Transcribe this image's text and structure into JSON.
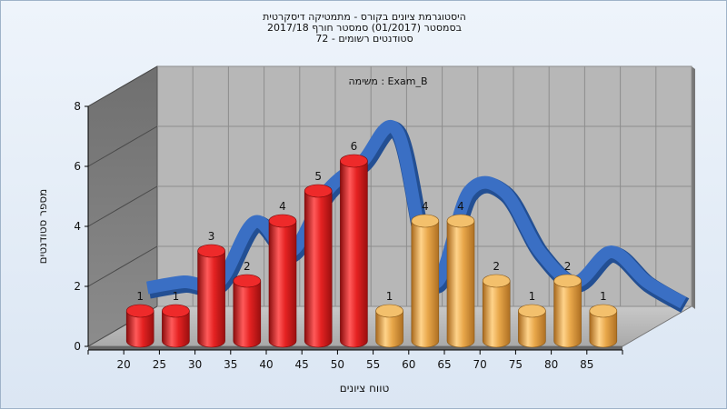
{
  "chart_data": {
    "type": "bar",
    "title_lines": [
      "היסטוגרמת ציונים בקורס - מתמטיקה דיסקרטית",
      "בסמסטר  (01/2017)  סמסטר חורף 2017/18",
      "סטודנטים רשומים - 72"
    ],
    "subtitle": "משימה : Exam_B",
    "xlabel": "טווח ציונים",
    "ylabel": "מספר סטודנטים",
    "x_ticks": [
      "20",
      "25",
      "30",
      "35",
      "40",
      "45",
      "50",
      "55",
      "60",
      "65",
      "70",
      "75",
      "80",
      "85"
    ],
    "y_ticks": [
      "0",
      "2",
      "4",
      "6",
      "8"
    ],
    "ylim": [
      0,
      8
    ],
    "categories": [
      "20",
      "25",
      "30",
      "35",
      "40",
      "45",
      "50",
      "55",
      "60",
      "65",
      "70",
      "75",
      "80",
      "85"
    ],
    "values": [
      1,
      1,
      3,
      2,
      4,
      5,
      6,
      1,
      4,
      4,
      2,
      1,
      2,
      1
    ],
    "bar_colors": [
      "#d81e1e",
      "#d81e1e",
      "#d81e1e",
      "#d81e1e",
      "#d81e1e",
      "#d81e1e",
      "#d81e1e",
      "#e6a347",
      "#e6a347",
      "#e6a347",
      "#e6a347",
      "#e6a347",
      "#e6a347",
      "#e6a347"
    ],
    "curve_color": "#3a6fc4",
    "grid": true
  }
}
